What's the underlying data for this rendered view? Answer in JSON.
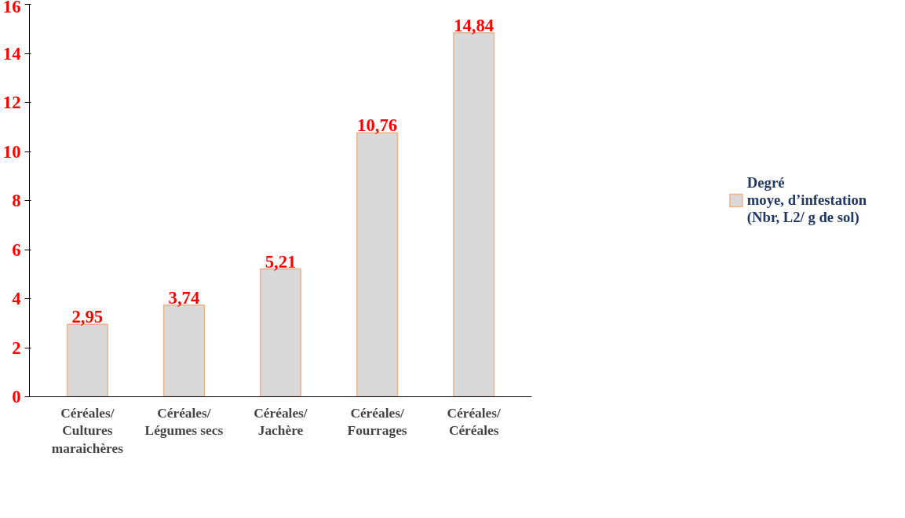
{
  "chart_data": {
    "type": "bar",
    "categories": [
      "Céréales/\nCultures\nmaraichères",
      "Céréales/\nLégumes secs",
      "Céréales/\nJachère",
      "Céréales/\nFourrages",
      "Céréales/\nCéréales"
    ],
    "series": [
      {
        "name": "Degré\nmoye, d’infestation\n(Nbr, L2/ g de sol)",
        "color": "#d9d9d9",
        "values": [
          2.95,
          3.74,
          5.21,
          10.76,
          14.84
        ],
        "value_labels": [
          "2,95",
          "3,74",
          "5,21",
          "10,76",
          "14,84"
        ]
      }
    ],
    "ylim": [
      0,
      16
    ],
    "yticks": [
      0,
      2,
      4,
      6,
      8,
      10,
      12,
      14,
      16
    ],
    "grid": false,
    "legend": "right"
  }
}
